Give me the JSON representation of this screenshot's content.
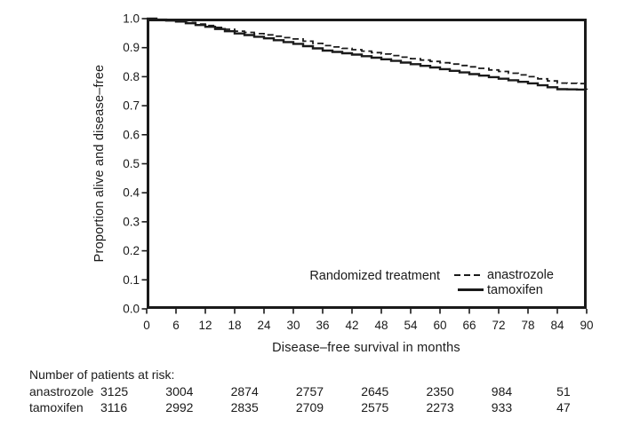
{
  "chart_data": {
    "type": "line",
    "title": "",
    "xlabel": "Disease–free survival in months",
    "ylabel": "Proportion alive and disease–free",
    "xlim": [
      0,
      90
    ],
    "ylim": [
      0,
      1
    ],
    "xticks": [
      0,
      6,
      12,
      18,
      24,
      30,
      36,
      42,
      48,
      54,
      60,
      66,
      72,
      78,
      84,
      90
    ],
    "yticks": [
      "0.0",
      "0.1",
      "0.2",
      "0.3",
      "0.4",
      "0.5",
      "0.6",
      "0.7",
      "0.8",
      "0.9",
      "1.0"
    ],
    "grid": false,
    "legend_title": "Randomized treatment",
    "legend_position": "inside-bottom-right",
    "x": [
      0,
      6,
      12,
      18,
      24,
      30,
      36,
      42,
      48,
      54,
      60,
      66,
      72,
      78,
      84,
      90
    ],
    "series": [
      {
        "name": "anastrozole",
        "style": "dashed",
        "values": [
          1.0,
          0.992,
          0.976,
          0.957,
          0.944,
          0.93,
          0.907,
          0.893,
          0.878,
          0.862,
          0.848,
          0.834,
          0.818,
          0.8,
          0.778,
          0.775
        ]
      },
      {
        "name": "tamoxifen",
        "style": "solid",
        "values": [
          1.0,
          0.99,
          0.972,
          0.949,
          0.932,
          0.913,
          0.89,
          0.876,
          0.86,
          0.843,
          0.826,
          0.809,
          0.793,
          0.777,
          0.757,
          0.755
        ]
      }
    ],
    "line_color": "#1a1a1a"
  },
  "risk_table": {
    "title": "Number of patients at risk:",
    "rows": [
      {
        "label": "anastrozole",
        "values": [
          "3125",
          "3004",
          "2874",
          "2757",
          "2645",
          "2350",
          "984",
          "51"
        ]
      },
      {
        "label": "tamoxifen",
        "values": [
          "3116",
          "2992",
          "2835",
          "2709",
          "2575",
          "2273",
          "933",
          "47"
        ]
      }
    ]
  },
  "colors": {
    "text": "#1a1a1a",
    "line": "#1a1a1a",
    "background": "#ffffff"
  }
}
